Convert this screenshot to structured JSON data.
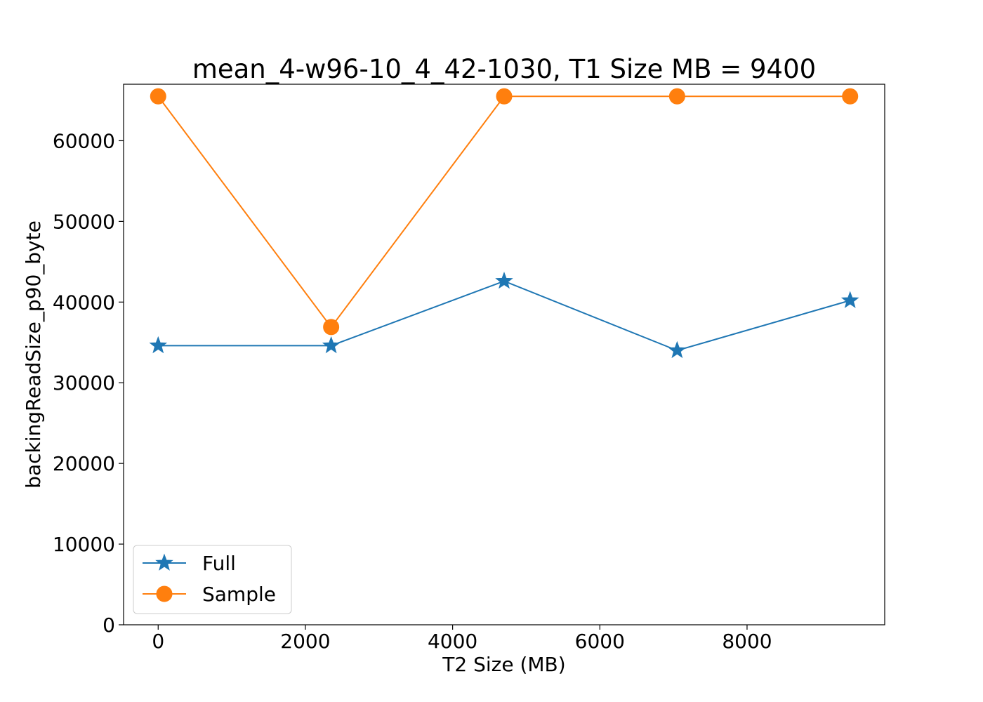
{
  "chart_data": {
    "type": "line",
    "title": "mean_4-w96-10_4_42-1030, T1 Size MB = 9400",
    "xlabel": "T2 Size (MB)",
    "ylabel": "backingReadSize_p90_byte",
    "xlim": [
      -470,
      9870
    ],
    "ylim": [
      0,
      67000
    ],
    "x_ticks": [
      0,
      2000,
      4000,
      6000,
      8000
    ],
    "x_tick_labels": [
      "0",
      "2000",
      "4000",
      "6000",
      "8000"
    ],
    "y_ticks": [
      0,
      10000,
      20000,
      30000,
      40000,
      50000,
      60000
    ],
    "y_tick_labels": [
      "0",
      "10000",
      "20000",
      "30000",
      "40000",
      "50000",
      "60000"
    ],
    "grid": false,
    "legend_position": "lower-left",
    "series": [
      {
        "name": "Full",
        "color": "#1f77b4",
        "marker": "star",
        "x": [
          0,
          2350,
          4700,
          7050,
          9400
        ],
        "y": [
          34600,
          34600,
          42600,
          34000,
          40200
        ]
      },
      {
        "name": "Sample",
        "color": "#ff7f0e",
        "marker": "circle",
        "x": [
          0,
          2350,
          4700,
          7050,
          9400
        ],
        "y": [
          65500,
          36900,
          65500,
          65500,
          65500
        ]
      }
    ]
  }
}
